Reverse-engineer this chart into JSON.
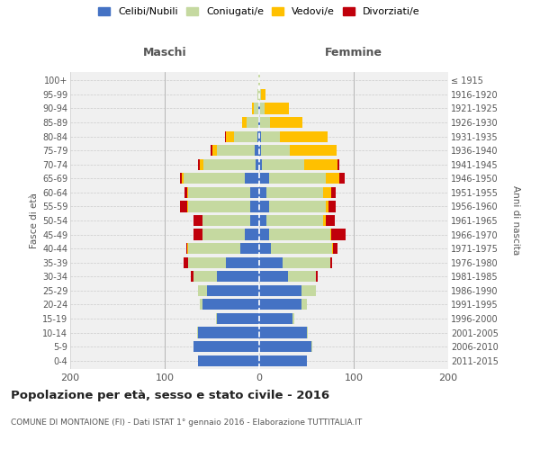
{
  "age_groups": [
    "0-4",
    "5-9",
    "10-14",
    "15-19",
    "20-24",
    "25-29",
    "30-34",
    "35-39",
    "40-44",
    "45-49",
    "50-54",
    "55-59",
    "60-64",
    "65-69",
    "70-74",
    "75-79",
    "80-84",
    "85-89",
    "90-94",
    "95-99",
    "100+"
  ],
  "birth_years": [
    "2011-2015",
    "2006-2010",
    "2001-2005",
    "1996-2000",
    "1991-1995",
    "1986-1990",
    "1981-1985",
    "1976-1980",
    "1971-1975",
    "1966-1970",
    "1961-1965",
    "1956-1960",
    "1951-1955",
    "1946-1950",
    "1941-1945",
    "1936-1940",
    "1931-1935",
    "1926-1930",
    "1921-1925",
    "1916-1920",
    "≤ 1915"
  ],
  "maschi": {
    "celibi": [
      65,
      70,
      65,
      45,
      60,
      55,
      45,
      35,
      20,
      15,
      10,
      10,
      10,
      15,
      4,
      5,
      2,
      1,
      1,
      0,
      0
    ],
    "coniugati": [
      0,
      0,
      1,
      1,
      3,
      10,
      25,
      40,
      55,
      45,
      50,
      65,
      65,
      65,
      55,
      40,
      25,
      12,
      5,
      2,
      1
    ],
    "vedovi": [
      0,
      0,
      0,
      0,
      0,
      0,
      0,
      0,
      1,
      0,
      0,
      1,
      1,
      2,
      4,
      5,
      8,
      5,
      2,
      0,
      0
    ],
    "divorziati": [
      0,
      0,
      0,
      0,
      0,
      0,
      2,
      5,
      1,
      10,
      10,
      8,
      3,
      2,
      2,
      1,
      1,
      0,
      0,
      0,
      0
    ]
  },
  "femmine": {
    "nubili": [
      50,
      55,
      50,
      35,
      45,
      45,
      30,
      25,
      12,
      10,
      8,
      10,
      8,
      10,
      3,
      2,
      2,
      1,
      1,
      0,
      0
    ],
    "coniugate": [
      0,
      1,
      1,
      2,
      5,
      15,
      30,
      50,
      65,
      65,
      60,
      60,
      60,
      60,
      45,
      30,
      20,
      10,
      5,
      2,
      1
    ],
    "vedove": [
      0,
      0,
      0,
      0,
      0,
      0,
      0,
      0,
      1,
      1,
      2,
      3,
      8,
      15,
      35,
      50,
      50,
      35,
      25,
      5,
      0
    ],
    "divorziate": [
      0,
      0,
      0,
      0,
      0,
      0,
      2,
      2,
      5,
      15,
      10,
      8,
      5,
      5,
      2,
      0,
      0,
      0,
      0,
      0,
      0
    ]
  },
  "colors": {
    "celibi": "#4472C4",
    "coniugati": "#c5d9a0",
    "vedovi": "#ffc000",
    "divorziati": "#c0000b"
  },
  "xlim": [
    -200,
    200
  ],
  "title": "Popolazione per età, sesso e stato civile - 2016",
  "subtitle": "COMUNE DI MONTAIONE (FI) - Dati ISTAT 1° gennaio 2016 - Elaborazione TUTTITALIA.IT",
  "ylabel_left": "Fasce di età",
  "ylabel_right": "Anni di nascita",
  "xlabel_left": "Maschi",
  "xlabel_right": "Femmine",
  "bg_color": "#f0f0f0",
  "grid_color": "#cccccc"
}
